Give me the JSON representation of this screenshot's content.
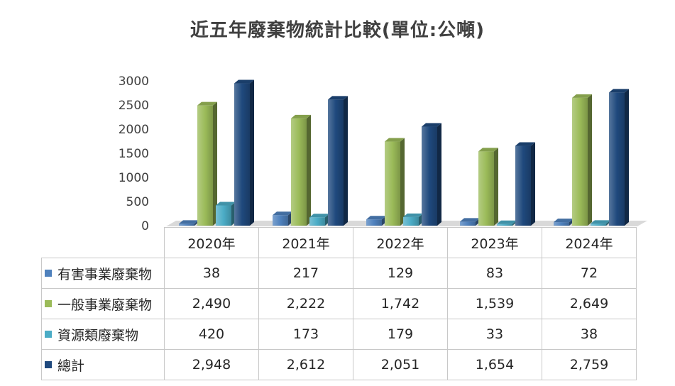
{
  "chart_data": {
    "type": "bar",
    "title": "近五年廢棄物統計比較(單位:公噸)",
    "categories": [
      "2020年",
      "2021年",
      "2022年",
      "2023年",
      "2024年"
    ],
    "ylim": [
      0,
      3000
    ],
    "yticks": [
      "0",
      "500",
      "1000",
      "1500",
      "2000",
      "2500",
      "3000"
    ],
    "grid": false,
    "legend": "table-left",
    "series": [
      {
        "name": "有害事業廢棄物",
        "values": [
          38,
          217,
          129,
          83,
          72
        ],
        "labels": [
          "38",
          "217",
          "129",
          "83",
          "72"
        ],
        "color": "#4f81bd"
      },
      {
        "name": "一般事業廢棄物",
        "values": [
          2490,
          2222,
          1742,
          1539,
          2649
        ],
        "labels": [
          "2,490",
          "2,222",
          "1,742",
          "1,539",
          "2,649"
        ],
        "color": "#9bbb59"
      },
      {
        "name": "資源類廢棄物",
        "values": [
          420,
          173,
          179,
          33,
          38
        ],
        "labels": [
          "420",
          "173",
          "179",
          "33",
          "38"
        ],
        "color": "#4bacc6"
      },
      {
        "name": "總計",
        "values": [
          2948,
          2612,
          2051,
          1654,
          2759
        ],
        "labels": [
          "2,948",
          "2,612",
          "2,051",
          "1,654",
          "2,759"
        ],
        "color": "#1f497d"
      }
    ]
  }
}
